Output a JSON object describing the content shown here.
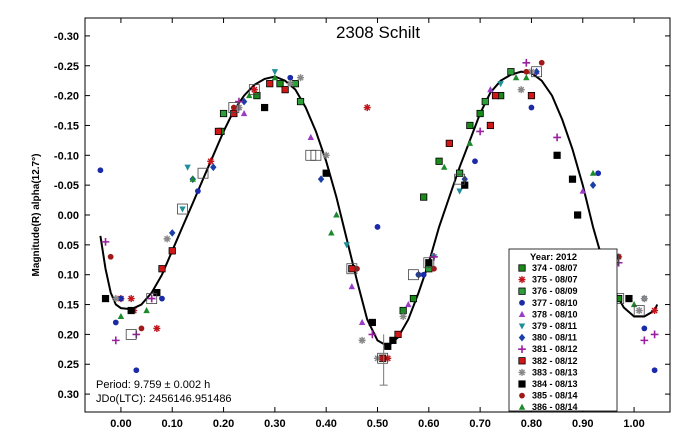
{
  "chart_data": {
    "type": "scatter",
    "title": "2308 Schilt",
    "xlabel": "",
    "ylabel": "Magnitude(R) alpha(12.7°)",
    "xlim": [
      -0.07,
      1.07
    ],
    "ylim": [
      0.33,
      -0.33
    ],
    "y_inverted": true,
    "x_ticks": [
      0.0,
      0.1,
      0.2,
      0.3,
      0.4,
      0.5,
      0.6,
      0.7,
      0.8,
      0.9,
      1.0
    ],
    "x_tick_labels": [
      "0.00",
      "0.10",
      "0.20",
      "0.30",
      "0.40",
      "0.50",
      "0.60",
      "0.70",
      "0.80",
      "0.90",
      "1.00"
    ],
    "y_ticks": [
      -0.3,
      -0.25,
      -0.2,
      -0.15,
      -0.1,
      -0.05,
      0.0,
      0.05,
      0.1,
      0.15,
      0.2,
      0.25,
      0.3
    ],
    "y_tick_labels": [
      "-0.30",
      "-0.25",
      "-0.20",
      "-0.15",
      "-0.10",
      "-0.05",
      "0.00",
      "0.05",
      "0.10",
      "0.15",
      "0.20",
      "0.25",
      "0.30"
    ],
    "annotations": [
      "Period: 9.759 ± 0.002 h",
      "JDo(LTC): 2456146.951486"
    ],
    "legend": {
      "title": "Year: 2012",
      "position": "bottom-right",
      "entries": [
        {
          "label": "374 - 08/07",
          "marker": "square",
          "color": "#1a8a1a",
          "stroke": "#000000"
        },
        {
          "label": "375 - 08/07",
          "marker": "asterisk",
          "color": "#c0161c"
        },
        {
          "label": "376 - 08/09",
          "marker": "square",
          "color": "#2e9e3a",
          "stroke": "#000000"
        },
        {
          "label": "377 - 08/10",
          "marker": "circle",
          "color": "#1a2aa8"
        },
        {
          "label": "378 - 08/10",
          "marker": "triangle-up",
          "color": "#9a3cc8"
        },
        {
          "label": "379 - 08/11",
          "marker": "triangle-down",
          "color": "#1f8f9a"
        },
        {
          "label": "380 - 08/11",
          "marker": "diamond",
          "color": "#1a3fa8"
        },
        {
          "label": "381 - 08/12",
          "marker": "plus",
          "color": "#9a20a0"
        },
        {
          "label": "382 - 08/12",
          "marker": "square",
          "color": "#d01818",
          "stroke": "#000000"
        },
        {
          "label": "383 - 08/13",
          "marker": "asterisk",
          "color": "#888888"
        },
        {
          "label": "384 - 08/13",
          "marker": "square",
          "color": "#000000"
        },
        {
          "label": "385 - 08/14",
          "marker": "circle",
          "color": "#a01818"
        },
        {
          "label": "386 - 08/14",
          "marker": "triangle-up",
          "color": "#1a8a2a"
        }
      ]
    },
    "fit_curve": {
      "color": "#000000",
      "points": [
        [
          -0.04,
          0.035
        ],
        [
          -0.03,
          0.09
        ],
        [
          -0.02,
          0.13
        ],
        [
          -0.01,
          0.15
        ],
        [
          0.0,
          0.156
        ],
        [
          0.02,
          0.158
        ],
        [
          0.04,
          0.15
        ],
        [
          0.06,
          0.13
        ],
        [
          0.08,
          0.1
        ],
        [
          0.1,
          0.06
        ],
        [
          0.12,
          0.02
        ],
        [
          0.14,
          -0.02
        ],
        [
          0.16,
          -0.06
        ],
        [
          0.18,
          -0.1
        ],
        [
          0.2,
          -0.14
        ],
        [
          0.22,
          -0.175
        ],
        [
          0.24,
          -0.2
        ],
        [
          0.26,
          -0.218
        ],
        [
          0.28,
          -0.228
        ],
        [
          0.3,
          -0.232
        ],
        [
          0.32,
          -0.225
        ],
        [
          0.34,
          -0.21
        ],
        [
          0.36,
          -0.18
        ],
        [
          0.38,
          -0.14
        ],
        [
          0.4,
          -0.09
        ],
        [
          0.42,
          -0.03
        ],
        [
          0.44,
          0.04
        ],
        [
          0.46,
          0.11
        ],
        [
          0.48,
          0.175
        ],
        [
          0.5,
          0.21
        ],
        [
          0.52,
          0.22
        ],
        [
          0.54,
          0.205
        ],
        [
          0.56,
          0.175
        ],
        [
          0.58,
          0.13
        ],
        [
          0.6,
          0.08
        ],
        [
          0.62,
          0.02
        ],
        [
          0.64,
          -0.03
        ],
        [
          0.66,
          -0.08
        ],
        [
          0.68,
          -0.125
        ],
        [
          0.7,
          -0.17
        ],
        [
          0.72,
          -0.205
        ],
        [
          0.74,
          -0.225
        ],
        [
          0.76,
          -0.235
        ],
        [
          0.78,
          -0.24
        ],
        [
          0.8,
          -0.238
        ],
        [
          0.82,
          -0.225
        ],
        [
          0.84,
          -0.2
        ],
        [
          0.86,
          -0.16
        ],
        [
          0.88,
          -0.11
        ],
        [
          0.9,
          -0.05
        ],
        [
          0.92,
          0.02
        ],
        [
          0.94,
          0.08
        ],
        [
          0.96,
          0.125
        ],
        [
          0.98,
          0.155
        ],
        [
          1.0,
          0.17
        ],
        [
          1.02,
          0.17
        ],
        [
          1.04,
          0.16
        ],
        [
          1.045,
          0.15
        ]
      ]
    },
    "series": [
      {
        "name": "374 - 08/07",
        "points": [
          [
            0.265,
            -0.2
          ],
          [
            0.31,
            -0.22
          ],
          [
            0.74,
            -0.2
          ],
          [
            0.68,
            -0.15
          ],
          [
            0.7,
            -0.17
          ],
          [
            0.62,
            -0.09
          ],
          [
            0.59,
            -0.03
          ],
          [
            0.97,
            0.14
          ],
          [
            0.195,
            -0.14
          ],
          [
            0.55,
            0.16
          ],
          [
            0.57,
            0.14
          ]
        ]
      },
      {
        "name": "375 - 08/07",
        "points": [
          [
            0.0,
            0.14
          ],
          [
            0.02,
            0.14
          ],
          [
            0.07,
            0.19
          ],
          [
            0.175,
            -0.09
          ],
          [
            0.26,
            -0.21
          ],
          [
            0.48,
            -0.18
          ],
          [
            0.52,
            0.24
          ],
          [
            1.04,
            0.16
          ],
          [
            0.025,
            0.16
          ]
        ]
      },
      {
        "name": "376 - 08/09",
        "points": [
          [
            0.2,
            -0.17
          ],
          [
            0.34,
            -0.22
          ],
          [
            0.6,
            0.09
          ],
          [
            0.66,
            -0.07
          ],
          [
            0.71,
            -0.19
          ],
          [
            0.76,
            -0.24
          ],
          [
            0.35,
            -0.19
          ]
        ]
      },
      {
        "name": "377 - 08/10",
        "points": [
          [
            -0.04,
            -0.075
          ],
          [
            -0.01,
            0.18
          ],
          [
            0.0,
            0.14
          ],
          [
            0.08,
            0.14
          ],
          [
            0.15,
            -0.04
          ],
          [
            0.33,
            -0.23
          ],
          [
            0.5,
            0.02
          ],
          [
            0.58,
            0.1
          ],
          [
            0.59,
            0.1
          ],
          [
            0.69,
            -0.09
          ],
          [
            0.8,
            -0.18
          ],
          [
            0.93,
            -0.07
          ],
          [
            1.02,
            0.19
          ],
          [
            1.04,
            0.26
          ],
          [
            0.03,
            0.26
          ]
        ]
      },
      {
        "name": "378 - 08/10",
        "points": [
          [
            0.23,
            -0.18
          ],
          [
            0.24,
            -0.17
          ],
          [
            0.37,
            -0.13
          ],
          [
            0.42,
            0.0
          ],
          [
            0.45,
            0.12
          ],
          [
            0.47,
            0.18
          ],
          [
            0.56,
            0.15
          ],
          [
            0.72,
            -0.21
          ],
          [
            0.81,
            -0.24
          ],
          [
            0.9,
            -0.04
          ]
        ]
      },
      {
        "name": "379 - 08/11",
        "points": [
          [
            0.12,
            -0.01
          ],
          [
            0.13,
            -0.08
          ],
          [
            0.3,
            -0.24
          ],
          [
            0.44,
            0.05
          ],
          [
            0.61,
            0.07
          ],
          [
            0.74,
            -0.22
          ],
          [
            0.66,
            -0.04
          ]
        ]
      },
      {
        "name": "380 - 08/11",
        "points": [
          [
            0.1,
            0.03
          ],
          [
            0.14,
            -0.06
          ],
          [
            0.18,
            -0.08
          ],
          [
            0.24,
            -0.19
          ],
          [
            0.39,
            -0.06
          ],
          [
            0.58,
            0.1
          ],
          [
            0.67,
            -0.06
          ],
          [
            0.81,
            -0.24
          ],
          [
            0.92,
            -0.05
          ],
          [
            0.95,
            0.1
          ],
          [
            1.02,
            0.14
          ]
        ]
      },
      {
        "name": "381 - 08/12",
        "points": [
          [
            -0.03,
            0.045
          ],
          [
            -0.01,
            0.21
          ],
          [
            0.03,
            0.2
          ],
          [
            0.06,
            0.14
          ],
          [
            0.23,
            -0.19
          ],
          [
            0.49,
            0.2
          ],
          [
            0.61,
            0.07
          ],
          [
            0.7,
            -0.14
          ],
          [
            0.79,
            -0.255
          ],
          [
            0.85,
            -0.13
          ],
          [
            0.97,
            0.08
          ],
          [
            1.02,
            0.21
          ],
          [
            1.04,
            0.2
          ]
        ]
      },
      {
        "name": "382 - 08/12",
        "points": [
          [
            0.08,
            0.09
          ],
          [
            0.1,
            0.06
          ],
          [
            0.19,
            -0.14
          ],
          [
            0.22,
            -0.17
          ],
          [
            0.29,
            -0.22
          ],
          [
            0.32,
            -0.21
          ],
          [
            0.45,
            0.09
          ],
          [
            0.51,
            0.24
          ],
          [
            0.54,
            0.2
          ],
          [
            0.64,
            -0.12
          ],
          [
            0.73,
            -0.2
          ],
          [
            0.8,
            -0.2
          ],
          [
            0.96,
            0.08
          ],
          [
            0.72,
            -0.15
          ]
        ]
      },
      {
        "name": "383 - 08/13",
        "points": [
          [
            -0.01,
            0.14
          ],
          [
            0.09,
            0.04
          ],
          [
            0.23,
            -0.18
          ],
          [
            0.33,
            -0.22
          ],
          [
            0.35,
            -0.23
          ],
          [
            0.4,
            -0.1
          ],
          [
            0.5,
            0.24
          ],
          [
            0.55,
            0.17
          ],
          [
            0.78,
            -0.21
          ],
          [
            0.8,
            -0.24
          ],
          [
            0.97,
            0.07
          ],
          [
            1.01,
            0.16
          ],
          [
            1.02,
            0.14
          ],
          [
            0.47,
            0.21
          ]
        ]
      },
      {
        "name": "384 - 08/13",
        "points": [
          [
            -0.03,
            0.14
          ],
          [
            0.02,
            0.16
          ],
          [
            0.07,
            0.13
          ],
          [
            0.28,
            -0.18
          ],
          [
            0.4,
            -0.07
          ],
          [
            0.52,
            0.22
          ],
          [
            0.6,
            0.08
          ],
          [
            0.67,
            -0.05
          ],
          [
            0.85,
            -0.1
          ],
          [
            0.89,
            0.0
          ],
          [
            0.96,
            0.14
          ],
          [
            0.99,
            0.14
          ],
          [
            0.49,
            0.18
          ],
          [
            0.53,
            0.21
          ],
          [
            0.88,
            -0.06
          ]
        ]
      },
      {
        "name": "385 - 08/14",
        "points": [
          [
            -0.02,
            0.07
          ],
          [
            0.04,
            0.19
          ],
          [
            0.22,
            -0.18
          ],
          [
            0.46,
            0.09
          ],
          [
            0.51,
            0.24
          ],
          [
            0.61,
            0.09
          ],
          [
            0.79,
            -0.24
          ],
          [
            0.82,
            -0.255
          ],
          [
            0.97,
            0.07
          ]
        ]
      },
      {
        "name": "386 - 08/14",
        "points": [
          [
            0.0,
            0.17
          ],
          [
            0.05,
            0.16
          ],
          [
            0.14,
            -0.06
          ],
          [
            0.25,
            -0.2
          ],
          [
            0.3,
            -0.23
          ],
          [
            0.41,
            0.03
          ],
          [
            0.42,
            0.0
          ],
          [
            0.55,
            0.16
          ],
          [
            0.63,
            -0.08
          ],
          [
            0.68,
            -0.12
          ],
          [
            0.77,
            -0.23
          ],
          [
            0.79,
            -0.23
          ],
          [
            0.92,
            -0.07
          ],
          [
            1.0,
            0.15
          ]
        ]
      }
    ]
  }
}
